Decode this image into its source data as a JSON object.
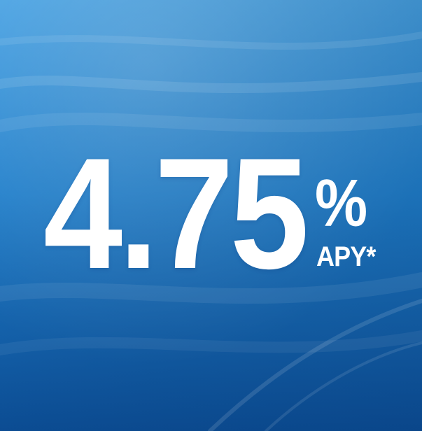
{
  "promo": {
    "rate_value": "4.75",
    "rate_unit": "%",
    "rate_suffix": "APY*"
  },
  "colors": {
    "background_top": "#3f9be0",
    "background_mid": "#1e7fd2",
    "background_bottom": "#0f5aa8",
    "text": "#ffffff"
  }
}
